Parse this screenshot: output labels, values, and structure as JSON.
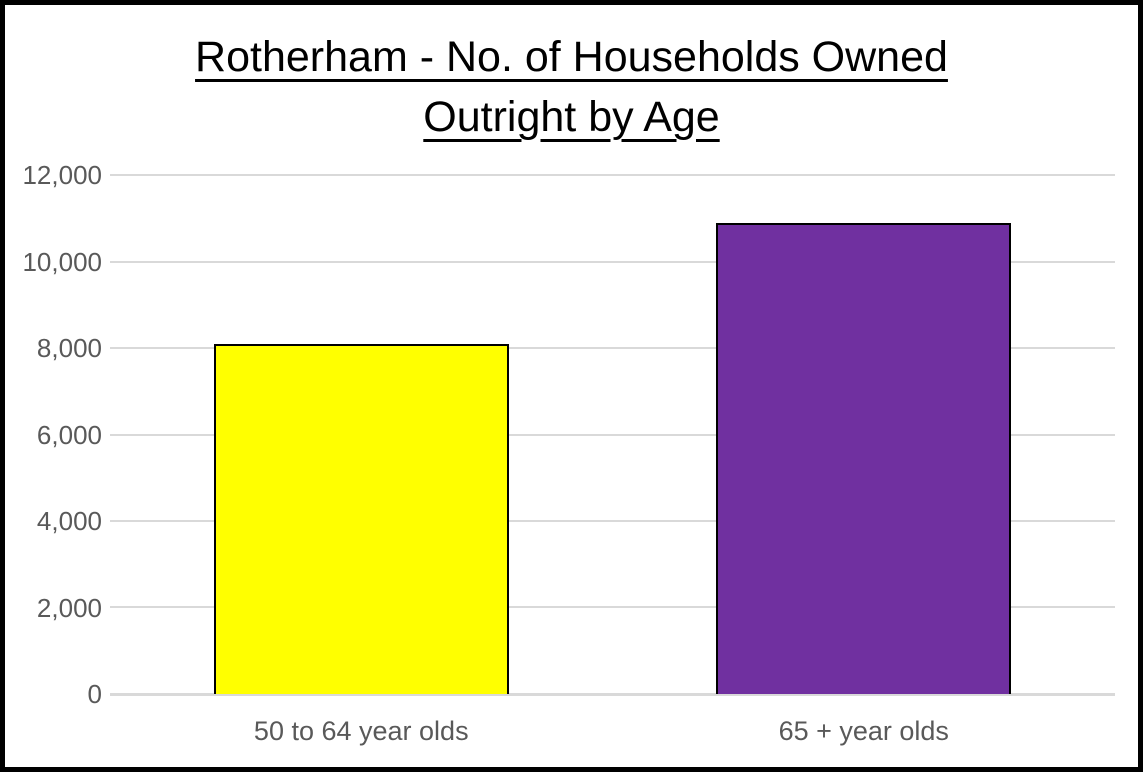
{
  "chart_data": {
    "type": "bar",
    "title": "Rotherham - No. of Households Owned Outright by Age",
    "title_lines": [
      "Rotherham - No. of Households Owned",
      "Outright by Age"
    ],
    "categories": [
      "50 to 64 year olds",
      "65 + year olds"
    ],
    "values": [
      8100,
      10900
    ],
    "bar_colors": [
      "#FFFF00",
      "#7030A0"
    ],
    "bar_border_color": "#000000",
    "xlabel": "",
    "ylabel": "",
    "ylim": [
      0,
      12000
    ],
    "ytick_interval": 2000,
    "ytick_labels": [
      "12,000",
      "10,000",
      "8,000",
      "6,000",
      "4,000",
      "2,000",
      "0"
    ],
    "grid": "horizontal",
    "gridline_color": "#D9D9D9",
    "axis_text_color": "#595959",
    "title_color": "#000000",
    "title_underlined": true,
    "legend": "none",
    "frame_border_color": "#000000"
  }
}
